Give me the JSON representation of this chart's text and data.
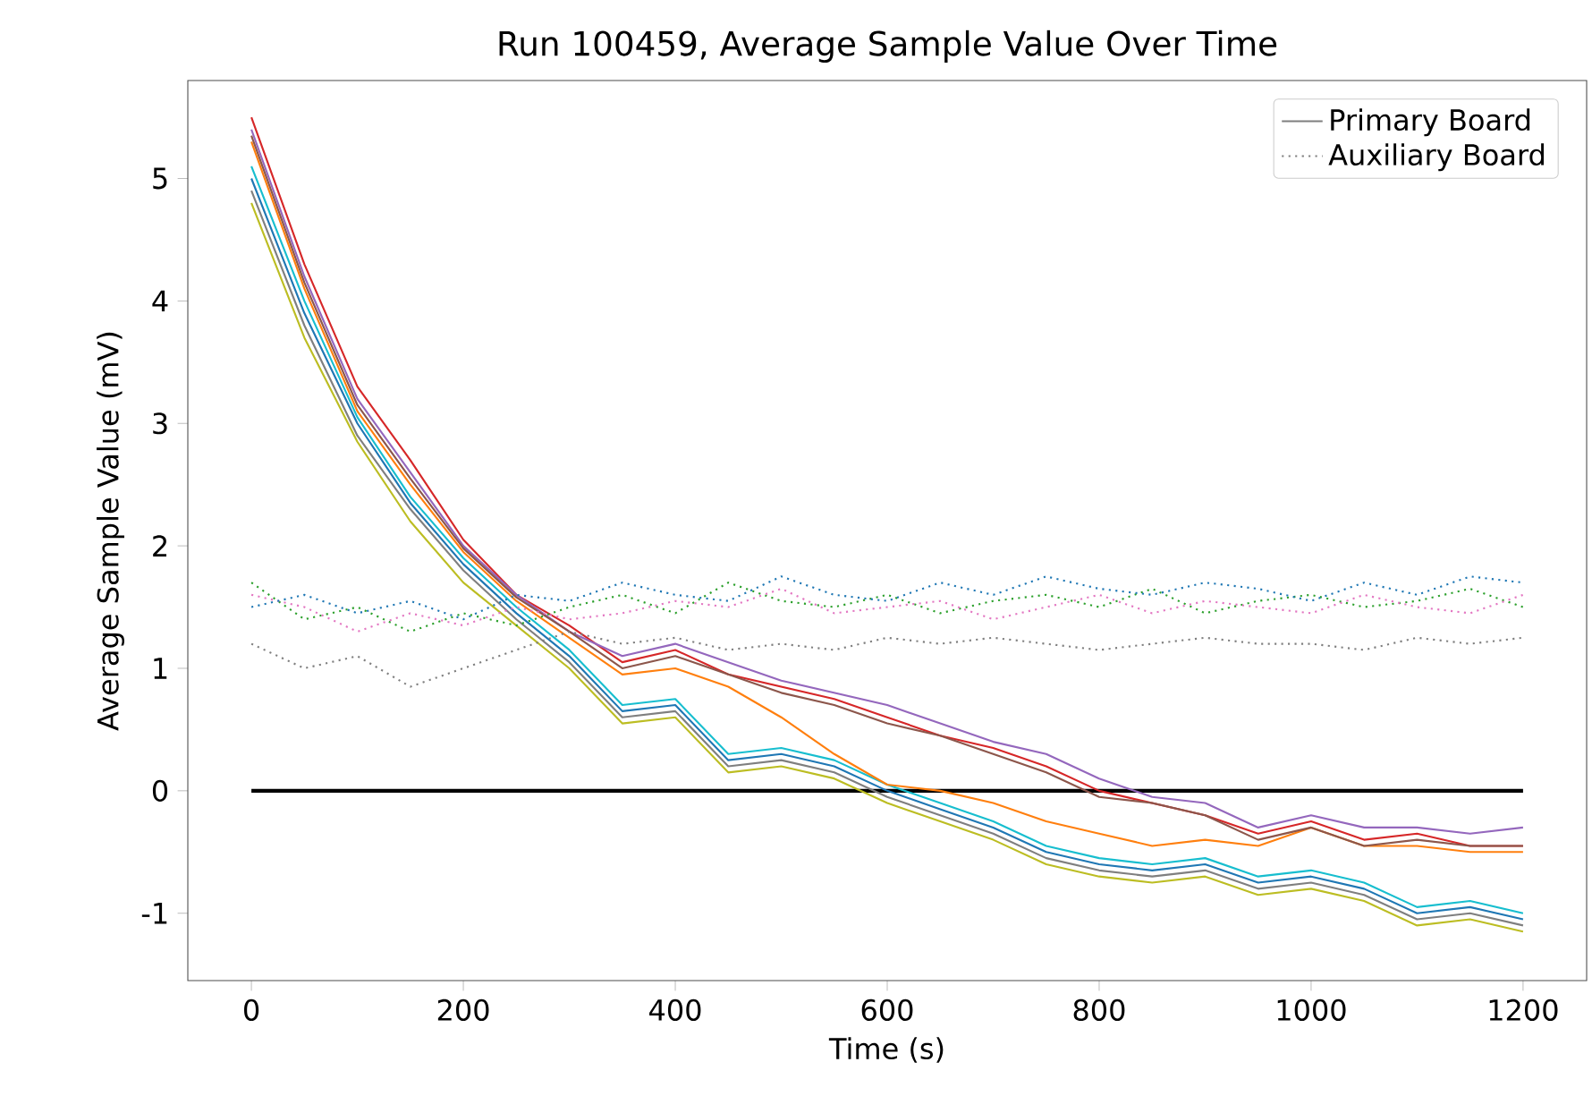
{
  "chart_data": {
    "type": "line",
    "title": "Run 100459, Average Sample Value Over Time",
    "xlabel": "Time (s)",
    "ylabel": "Average Sample Value  (mV)",
    "x": [
      0,
      50,
      100,
      150,
      200,
      250,
      300,
      350,
      400,
      450,
      500,
      550,
      600,
      650,
      700,
      750,
      800,
      850,
      900,
      950,
      1000,
      1050,
      1100,
      1150,
      1200
    ],
    "xlim": [
      -60,
      1260
    ],
    "ylim": [
      -1.55,
      5.8
    ],
    "xticks": [
      0,
      200,
      400,
      600,
      800,
      1000,
      1200
    ],
    "yticks": [
      -1,
      0,
      1,
      2,
      3,
      4,
      5
    ],
    "grid": false,
    "legend": "top right",
    "marker": "none",
    "series": [
      {
        "color": "#000000",
        "x": [
          0,
          1200
        ],
        "values": [
          0,
          0
        ],
        "line_style": "solid"
      },
      {
        "color": "#1f77b4",
        "line_style": "solid",
        "values": [
          5.0,
          3.9,
          3.0,
          2.35,
          1.85,
          1.45,
          1.1,
          0.65,
          0.7,
          0.25,
          0.3,
          0.2,
          0.0,
          -0.15,
          -0.3,
          -0.5,
          -0.6,
          -0.65,
          -0.6,
          -0.75,
          -0.7,
          -0.8,
          -1.0,
          -0.95,
          -1.05
        ]
      },
      {
        "color": "#17becf",
        "line_style": "solid",
        "values": [
          5.1,
          4.0,
          3.05,
          2.4,
          1.9,
          1.5,
          1.15,
          0.7,
          0.75,
          0.3,
          0.35,
          0.25,
          0.05,
          -0.1,
          -0.25,
          -0.45,
          -0.55,
          -0.6,
          -0.55,
          -0.7,
          -0.65,
          -0.75,
          -0.95,
          -0.9,
          -1.0
        ]
      },
      {
        "color": "#bcbd22",
        "line_style": "solid",
        "values": [
          4.8,
          3.7,
          2.85,
          2.2,
          1.7,
          1.35,
          1.0,
          0.55,
          0.6,
          0.15,
          0.2,
          0.1,
          -0.1,
          -0.25,
          -0.4,
          -0.6,
          -0.7,
          -0.75,
          -0.7,
          -0.85,
          -0.8,
          -0.9,
          -1.1,
          -1.05,
          -1.15
        ]
      },
      {
        "name": "Primary Board",
        "color": "#7f7f7f",
        "line_style": "solid",
        "values": [
          4.9,
          3.8,
          2.9,
          2.3,
          1.8,
          1.4,
          1.05,
          0.6,
          0.65,
          0.2,
          0.25,
          0.15,
          -0.05,
          -0.2,
          -0.35,
          -0.55,
          -0.65,
          -0.7,
          -0.65,
          -0.8,
          -0.75,
          -0.85,
          -1.05,
          -1.0,
          -1.1
        ]
      },
      {
        "color": "#d62728",
        "line_style": "solid",
        "values": [
          5.5,
          4.3,
          3.3,
          2.7,
          2.05,
          1.6,
          1.35,
          1.05,
          1.15,
          0.95,
          0.85,
          0.75,
          0.6,
          0.45,
          0.35,
          0.2,
          0.0,
          -0.1,
          -0.2,
          -0.35,
          -0.25,
          -0.4,
          -0.35,
          -0.45,
          -0.45
        ]
      },
      {
        "color": "#9467bd",
        "line_style": "solid",
        "values": [
          5.4,
          4.2,
          3.2,
          2.6,
          2.0,
          1.6,
          1.3,
          1.1,
          1.2,
          1.05,
          0.9,
          0.8,
          0.7,
          0.55,
          0.4,
          0.3,
          0.1,
          -0.05,
          -0.1,
          -0.3,
          -0.2,
          -0.3,
          -0.3,
          -0.35,
          -0.3
        ]
      },
      {
        "color": "#ff7f0e",
        "line_style": "solid",
        "values": [
          5.3,
          4.1,
          3.1,
          2.5,
          1.95,
          1.55,
          1.25,
          0.95,
          1.0,
          0.85,
          0.6,
          0.3,
          0.05,
          0.0,
          -0.1,
          -0.25,
          -0.35,
          -0.45,
          -0.4,
          -0.45,
          -0.3,
          -0.45,
          -0.45,
          -0.5,
          -0.5
        ]
      },
      {
        "color": "#8c564b",
        "line_style": "solid",
        "values": [
          5.35,
          4.15,
          3.15,
          2.55,
          1.98,
          1.58,
          1.3,
          1.0,
          1.1,
          0.95,
          0.8,
          0.7,
          0.55,
          0.45,
          0.3,
          0.15,
          -0.05,
          -0.1,
          -0.2,
          -0.4,
          -0.3,
          -0.45,
          -0.4,
          -0.45,
          -0.45
        ]
      },
      {
        "color": "#2ca02c",
        "line_style": "dotted",
        "values": [
          1.7,
          1.4,
          1.5,
          1.3,
          1.45,
          1.35,
          1.5,
          1.6,
          1.45,
          1.7,
          1.55,
          1.5,
          1.6,
          1.45,
          1.55,
          1.6,
          1.5,
          1.65,
          1.45,
          1.55,
          1.6,
          1.5,
          1.55,
          1.65,
          1.5
        ]
      },
      {
        "color": "#e377c2",
        "line_style": "dotted",
        "values": [
          1.6,
          1.5,
          1.3,
          1.45,
          1.35,
          1.5,
          1.4,
          1.45,
          1.55,
          1.5,
          1.65,
          1.45,
          1.5,
          1.55,
          1.4,
          1.5,
          1.6,
          1.45,
          1.55,
          1.5,
          1.45,
          1.6,
          1.5,
          1.45,
          1.6
        ]
      },
      {
        "name": "Auxiliary Board",
        "color": "#7f7f7f",
        "line_style": "dotted",
        "values": [
          1.2,
          1.0,
          1.1,
          0.85,
          1.0,
          1.15,
          1.3,
          1.2,
          1.25,
          1.15,
          1.2,
          1.15,
          1.25,
          1.2,
          1.25,
          1.2,
          1.15,
          1.2,
          1.25,
          1.2,
          1.2,
          1.15,
          1.25,
          1.2,
          1.25
        ]
      },
      {
        "color": "#1f77b4",
        "line_style": "dotted",
        "values": [
          1.5,
          1.6,
          1.45,
          1.55,
          1.4,
          1.6,
          1.55,
          1.7,
          1.6,
          1.55,
          1.75,
          1.6,
          1.55,
          1.7,
          1.6,
          1.75,
          1.65,
          1.6,
          1.7,
          1.65,
          1.55,
          1.7,
          1.6,
          1.75,
          1.7
        ]
      }
    ]
  }
}
